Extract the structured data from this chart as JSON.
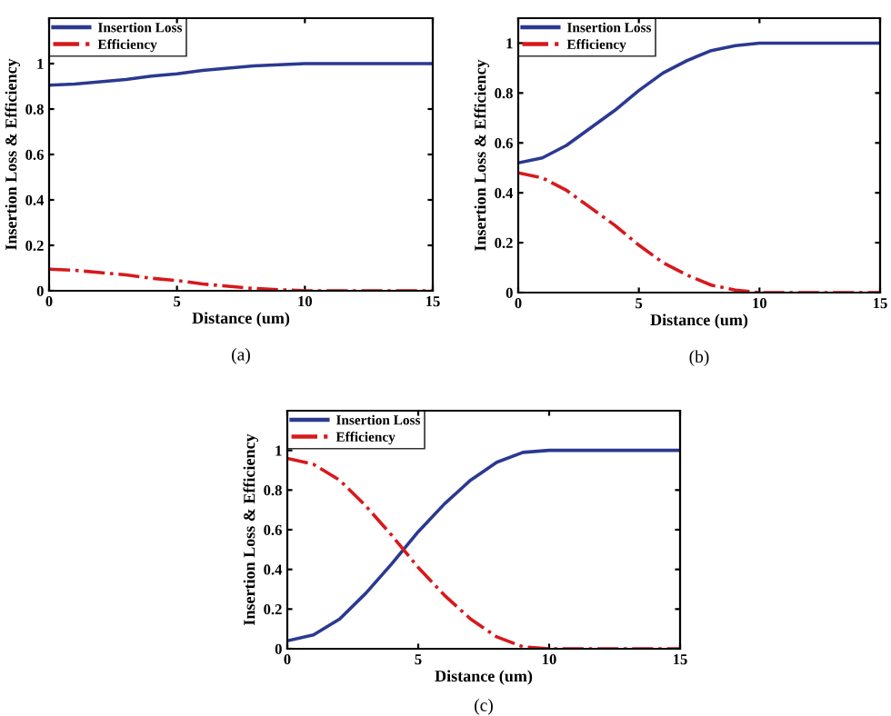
{
  "chart_data": [
    {
      "type": "line",
      "xlabel": "Distance (um)",
      "ylabel": "Insertion Loss & Efficiency",
      "x": [
        0,
        1,
        2,
        3,
        4,
        5,
        6,
        7,
        8,
        9,
        10,
        11,
        12,
        13,
        14,
        15
      ],
      "xlim": [
        0,
        15
      ],
      "xticks": [
        0,
        5,
        10,
        15
      ],
      "ylim": [
        0,
        1.2
      ],
      "yticks": [
        0,
        0.2,
        0.4,
        0.6,
        0.8,
        1
      ],
      "legend": "top left",
      "grid": false,
      "annotations": [
        "(a)"
      ],
      "series": [
        {
          "name": "Insertion Loss",
          "color": "#2b3990",
          "line_style": "solid",
          "values": [
            0.905,
            0.91,
            0.92,
            0.93,
            0.945,
            0.955,
            0.97,
            0.98,
            0.99,
            0.995,
            1,
            1,
            1,
            1,
            1,
            1
          ]
        },
        {
          "name": "Efficiency",
          "color": "#d7191c",
          "line_style": "dashdot",
          "values": [
            0.095,
            0.09,
            0.08,
            0.07,
            0.055,
            0.045,
            0.03,
            0.02,
            0.01,
            0.005,
            0,
            0,
            0,
            0,
            0,
            0
          ]
        }
      ]
    },
    {
      "type": "line",
      "xlabel": "Distance (um)",
      "ylabel": "Insertion Loss & Efficiency",
      "x": [
        0,
        1,
        2,
        3,
        4,
        5,
        6,
        7,
        8,
        9,
        10,
        11,
        12,
        13,
        14,
        15
      ],
      "xlim": [
        0,
        15
      ],
      "xticks": [
        0,
        5,
        10,
        15
      ],
      "ylim": [
        0,
        1.1
      ],
      "yticks": [
        0,
        0.2,
        0.4,
        0.6,
        0.8,
        1
      ],
      "legend": "top left",
      "grid": false,
      "annotations": [
        "(b)"
      ],
      "series": [
        {
          "name": "Insertion Loss",
          "color": "#2b3990",
          "line_style": "solid",
          "values": [
            0.52,
            0.54,
            0.59,
            0.66,
            0.73,
            0.81,
            0.88,
            0.93,
            0.97,
            0.99,
            1,
            1,
            1,
            1,
            1,
            1
          ]
        },
        {
          "name": "Efficiency",
          "color": "#d7191c",
          "line_style": "dashdot",
          "values": [
            0.48,
            0.46,
            0.41,
            0.34,
            0.27,
            0.19,
            0.12,
            0.07,
            0.03,
            0.01,
            0,
            0,
            0,
            0,
            0,
            0
          ]
        }
      ]
    },
    {
      "type": "line",
      "xlabel": "Distance (um)",
      "ylabel": "Insertion Loss & Efficiency",
      "x": [
        0,
        1,
        2,
        3,
        4,
        5,
        6,
        7,
        8,
        9,
        10,
        11,
        12,
        13,
        14,
        15
      ],
      "xlim": [
        0,
        15
      ],
      "xticks": [
        0,
        5,
        10,
        15
      ],
      "ylim": [
        0,
        1.2
      ],
      "yticks": [
        0,
        0.2,
        0.4,
        0.6,
        0.8,
        1
      ],
      "legend": "top left",
      "grid": false,
      "annotations": [
        "(c)"
      ],
      "series": [
        {
          "name": "Insertion Loss",
          "color": "#2b3990",
          "line_style": "solid",
          "values": [
            0.04,
            0.07,
            0.15,
            0.28,
            0.43,
            0.59,
            0.73,
            0.85,
            0.94,
            0.99,
            1,
            1,
            1,
            1,
            1,
            1
          ]
        },
        {
          "name": "Efficiency",
          "color": "#d7191c",
          "line_style": "dashdot",
          "values": [
            0.96,
            0.93,
            0.85,
            0.72,
            0.57,
            0.41,
            0.27,
            0.15,
            0.06,
            0.01,
            0,
            0,
            0,
            0,
            0,
            0
          ]
        }
      ]
    }
  ]
}
